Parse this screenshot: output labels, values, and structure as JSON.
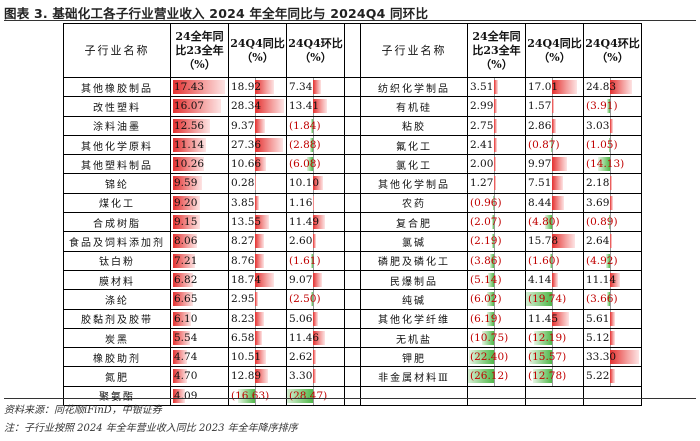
{
  "title": "图表 3. 基础化工各子行业营业收入 2024 年全年同比与 2024Q4 同环比",
  "headers": {
    "name": "子行业名称",
    "yoy24_line1": "24全年同",
    "yoy24_line2": "比23全年",
    "yoy24_line3": "（%）",
    "q4yoy_line1": "24Q4同比",
    "q4yoy_line2": "（%）",
    "q4qoq_line1": "24Q4环比",
    "q4qoq_line2": "（%）"
  },
  "left_rows": [
    {
      "name": "其他橡胶制品",
      "yoy": "17.43",
      "q4yoy": "18.92",
      "q4qoq": "7.34"
    },
    {
      "name": "改性塑料",
      "yoy": "16.07",
      "q4yoy": "28.34",
      "q4qoq": "13.41"
    },
    {
      "name": "涂料油墨",
      "yoy": "12.56",
      "q4yoy": "9.37",
      "q4qoq": "(1.84)"
    },
    {
      "name": "其他化学原料",
      "yoy": "11.14",
      "q4yoy": "27.36",
      "q4qoq": "(2.88)"
    },
    {
      "name": "其他塑料制品",
      "yoy": "10.26",
      "q4yoy": "10.66",
      "q4qoq": "(6.08)"
    },
    {
      "name": "锦纶",
      "yoy": "9.59",
      "q4yoy": "0.28",
      "q4qoq": "10.10"
    },
    {
      "name": "煤化工",
      "yoy": "9.20",
      "q4yoy": "3.85",
      "q4qoq": "1.16"
    },
    {
      "name": "合成树脂",
      "yoy": "9.15",
      "q4yoy": "13.55",
      "q4qoq": "11.49"
    },
    {
      "name": "食品及饲料添加剂",
      "yoy": "8.06",
      "q4yoy": "8.27",
      "q4qoq": "2.60"
    },
    {
      "name": "钛白粉",
      "yoy": "7.21",
      "q4yoy": "8.76",
      "q4qoq": "(1.61)"
    },
    {
      "name": "膜材料",
      "yoy": "6.82",
      "q4yoy": "18.74",
      "q4qoq": "9.07"
    },
    {
      "name": "涤纶",
      "yoy": "6.65",
      "q4yoy": "2.95",
      "q4qoq": "(2.50)"
    },
    {
      "name": "胶黏剂及胶带",
      "yoy": "6.10",
      "q4yoy": "8.23",
      "q4qoq": "5.06"
    },
    {
      "name": "炭黑",
      "yoy": "5.54",
      "q4yoy": "6.58",
      "q4qoq": "11.46"
    },
    {
      "name": "橡胶助剂",
      "yoy": "4.74",
      "q4yoy": "10.51",
      "q4qoq": "2.62"
    },
    {
      "name": "氮肥",
      "yoy": "4.70",
      "q4yoy": "12.89",
      "q4qoq": "3.30"
    },
    {
      "name": "聚氨酯",
      "yoy": "4.09",
      "q4yoy": "(16.63)",
      "q4qoq": "(28.47)"
    }
  ],
  "right_rows": [
    {
      "name": "纺织化学制品",
      "yoy": "3.51",
      "q4yoy": "17.01",
      "q4qoq": "24.83"
    },
    {
      "name": "有机硅",
      "yoy": "2.99",
      "q4yoy": "1.57",
      "q4qoq": "(3.91)"
    },
    {
      "name": "粘胶",
      "yoy": "2.75",
      "q4yoy": "2.86",
      "q4qoq": "3.03"
    },
    {
      "name": "氟化工",
      "yoy": "2.41",
      "q4yoy": "(0.87)",
      "q4qoq": "(1.05)"
    },
    {
      "name": "氯化工",
      "yoy": "2.00",
      "q4yoy": "9.97",
      "q4qoq": "(14.13)"
    },
    {
      "name": "其他化学制品",
      "yoy": "1.27",
      "q4yoy": "7.51",
      "q4qoq": "2.18"
    },
    {
      "name": "农药",
      "yoy": "(0.96)",
      "q4yoy": "8.44",
      "q4qoq": "3.69"
    },
    {
      "name": "复合肥",
      "yoy": "(2.07)",
      "q4yoy": "(4.80)",
      "q4qoq": "(0.89)"
    },
    {
      "name": "氯碱",
      "yoy": "(2.19)",
      "q4yoy": "15.78",
      "q4qoq": "2.64"
    },
    {
      "name": "磷肥及磷化工",
      "yoy": "(3.86)",
      "q4yoy": "(1.60)",
      "q4qoq": "(4.92)"
    },
    {
      "name": "民爆制品",
      "yoy": "(5.14)",
      "q4yoy": "4.14",
      "q4qoq": "11.14"
    },
    {
      "name": "纯碱",
      "yoy": "(6.02)",
      "q4yoy": "(19.74)",
      "q4qoq": "(3.66)"
    },
    {
      "name": "其他化学纤维",
      "yoy": "(6.19)",
      "q4yoy": "11.45",
      "q4qoq": "5.61"
    },
    {
      "name": "无机盐",
      "yoy": "(10.75)",
      "q4yoy": "(12.19)",
      "q4qoq": "5.12"
    },
    {
      "name": "钾肥",
      "yoy": "(22.40)",
      "q4yoy": "(15.57)",
      "q4qoq": "33.30"
    },
    {
      "name": "非金属材料Ⅲ",
      "yoy": "(26.12)",
      "q4yoy": "(12.78)",
      "q4qoq": "5.22"
    },
    {
      "name": "",
      "yoy": "",
      "q4yoy": "",
      "q4qoq": ""
    }
  ],
  "colors": {
    "positive_bar": "#e4302f",
    "negative_bar": "#4fb848",
    "negative_text": "#c00000"
  },
  "footnotes": {
    "source": "资料来源：同花顺iFinD，中银证券",
    "note": "注：子行业按照 2024 年全年营业收入同比 2023 年全年降序排序"
  }
}
